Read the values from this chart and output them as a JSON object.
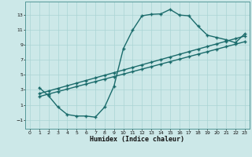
{
  "title": "",
  "xlabel": "Humidex (Indice chaleur)",
  "bg_color": "#cce8e8",
  "grid_color": "#aad4d4",
  "line_color": "#1a6b6b",
  "xlim": [
    -0.5,
    23.5
  ],
  "ylim": [
    -2.2,
    14.8
  ],
  "xticks": [
    0,
    1,
    2,
    3,
    4,
    5,
    6,
    7,
    8,
    9,
    10,
    11,
    12,
    13,
    14,
    15,
    16,
    17,
    18,
    19,
    20,
    21,
    22,
    23
  ],
  "yticks": [
    -1,
    1,
    3,
    5,
    7,
    9,
    11,
    13
  ],
  "curve1_x": [
    1,
    2,
    3,
    4,
    5,
    6,
    7,
    8,
    9,
    10,
    11,
    12,
    13,
    14,
    15,
    16,
    17,
    18,
    19,
    20,
    21,
    22,
    23
  ],
  "curve1_y": [
    3.3,
    2.2,
    0.7,
    -0.3,
    -0.5,
    -0.5,
    -0.65,
    0.7,
    3.5,
    8.5,
    11.0,
    12.9,
    13.1,
    13.15,
    13.75,
    13.0,
    12.9,
    11.5,
    10.3,
    10.0,
    9.7,
    9.3,
    10.5
  ],
  "curve2_x": [
    1,
    2,
    3,
    4,
    5,
    6,
    7,
    8,
    9,
    10,
    11,
    12,
    13,
    14,
    15,
    16,
    17,
    18,
    19,
    20,
    21,
    22,
    23
  ],
  "curve2_y": [
    2.5,
    2.85,
    3.2,
    3.55,
    3.9,
    4.25,
    4.6,
    4.95,
    5.3,
    5.65,
    6.0,
    6.35,
    6.7,
    7.05,
    7.4,
    7.75,
    8.1,
    8.45,
    8.8,
    9.15,
    9.5,
    9.85,
    10.2
  ],
  "curve3_x": [
    1,
    2,
    3,
    4,
    5,
    6,
    7,
    8,
    9,
    10,
    11,
    12,
    13,
    14,
    15,
    16,
    17,
    18,
    19,
    20,
    21,
    22,
    23
  ],
  "curve3_y": [
    2.1,
    2.44,
    2.77,
    3.1,
    3.44,
    3.77,
    4.1,
    4.44,
    4.77,
    5.1,
    5.44,
    5.77,
    6.1,
    6.44,
    6.77,
    7.1,
    7.44,
    7.77,
    8.1,
    8.44,
    8.77,
    9.1,
    9.44
  ],
  "markersize": 2.5,
  "linewidth": 1.0
}
